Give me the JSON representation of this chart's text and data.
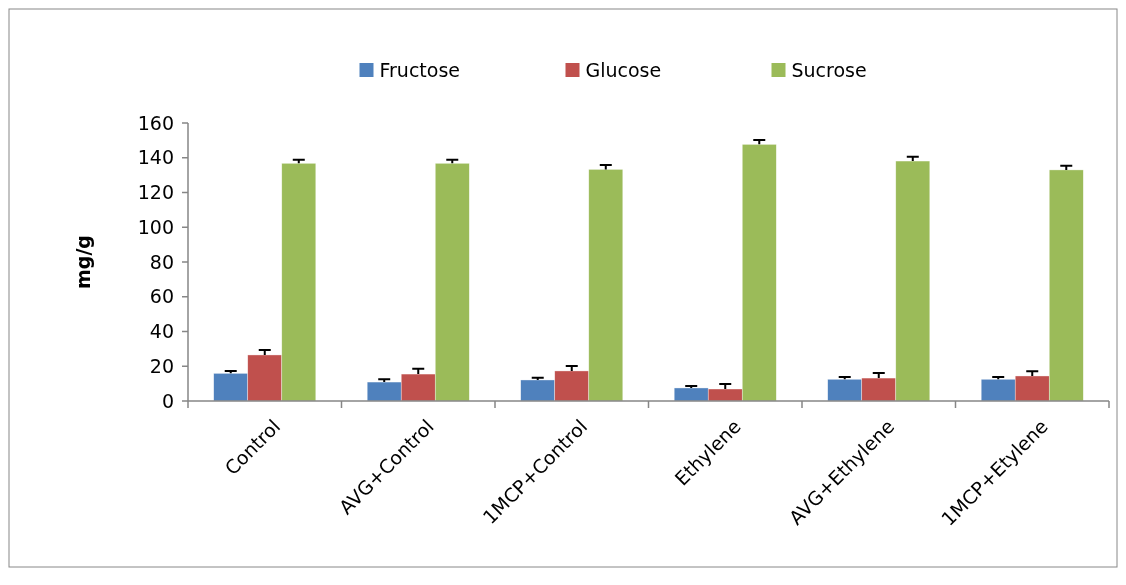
{
  "chart_data": {
    "type": "bar",
    "ylabel": "mg/g",
    "categories": [
      "Control",
      "AVG+Control",
      "1MCP+Control",
      "Ethylene",
      "AVG+Ethylene",
      "1MCP+Etylene"
    ],
    "series": [
      {
        "name": "Fructose",
        "color": "#4f81bd",
        "values": [
          15.9,
          10.9,
          12.1,
          7.5,
          12.5,
          12.5
        ],
        "errors": [
          [
            15.9,
            17.3
          ],
          [
            10.9,
            12.5
          ],
          [
            12.1,
            13.4
          ],
          [
            7.5,
            8.6
          ],
          [
            12.5,
            13.8
          ],
          [
            12.5,
            13.8
          ]
        ]
      },
      {
        "name": "Glucose",
        "color": "#c0504d",
        "values": [
          26.5,
          15.5,
          17.3,
          6.9,
          13.2,
          14.4
        ],
        "errors": [
          [
            26.5,
            29.4
          ],
          [
            15.5,
            18.6
          ],
          [
            17.3,
            20.1
          ],
          [
            6.9,
            9.8
          ],
          [
            13.2,
            16.1
          ],
          [
            14.4,
            17.1
          ]
        ]
      },
      {
        "name": "Sucrose",
        "color": "#9bbb59",
        "values": [
          136.8,
          136.8,
          133.3,
          147.7,
          138.1,
          133
        ],
        "errors": [
          [
            136.8,
            138.9
          ],
          [
            136.8,
            138.9
          ],
          [
            133.3,
            135.8
          ],
          [
            147.7,
            150.2
          ],
          [
            138.1,
            140.6
          ],
          [
            133,
            135.4
          ]
        ]
      }
    ],
    "ylim": [
      0,
      160
    ],
    "yticks": [
      0,
      20,
      40,
      60,
      80,
      100,
      120,
      140,
      160
    ],
    "grid": false,
    "legend": "top"
  }
}
